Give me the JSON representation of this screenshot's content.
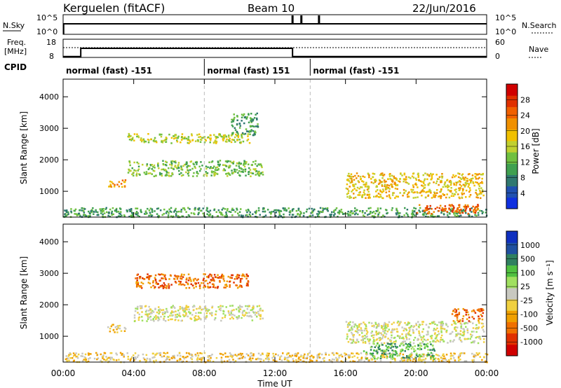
{
  "header": {
    "station": "Kerguelen (fitACF)",
    "beam": "Beam 10",
    "date": "22/Jun/2016"
  },
  "panels": {
    "nsky": {
      "label": "N.Sky",
      "right_label": "N.Search",
      "ticks": [
        "10^5",
        "10^0"
      ]
    },
    "freq": {
      "label_line1": "Freq.",
      "label_line2": "[MHz]",
      "ticks": [
        "18",
        "8"
      ],
      "right_ticks": [
        "60",
        "0"
      ],
      "right_label": "Nave"
    },
    "cpid": {
      "label": "CPID"
    }
  },
  "colors": {
    "frame": "#000000",
    "power_scale": [
      "#1030e0",
      "#2050b0",
      "#307870",
      "#40a050",
      "#70c040",
      "#c0d030",
      "#f0c000",
      "#f09000",
      "#f06000",
      "#e03000",
      "#d00000"
    ],
    "velocity_scale": [
      "#1030c0",
      "#2050a0",
      "#308060",
      "#50c040",
      "#a0e060",
      "#c8c8c0",
      "#f0d040",
      "#f0a000",
      "#f07000",
      "#e03000",
      "#d00000"
    ]
  },
  "cpid_segments": [
    {
      "label": "normal (fast) -151",
      "start_hour": 0
    },
    {
      "label": "normal (fast) 151",
      "start_hour": 8
    },
    {
      "label": "normal (fast) -151",
      "start_hour": 14
    }
  ],
  "colorbars": {
    "power": {
      "title": "Power [dB]",
      "ticks": [
        "28",
        "24",
        "20",
        "16",
        "12",
        "8",
        "4"
      ]
    },
    "velocity": {
      "title": "Velocity [m s⁻¹]",
      "ticks": [
        "1000",
        "500",
        "100",
        "25",
        "-25",
        "-100",
        "-500",
        "-1000"
      ]
    }
  },
  "chart_data": {
    "type": "heatmap",
    "xlabel": "Time UT",
    "ylabel": "Slant Range [km]",
    "x_ticks": [
      "00:00",
      "04:00",
      "08:00",
      "12:00",
      "16:00",
      "20:00",
      "00:00"
    ],
    "y_ticks": [
      "4000",
      "3000",
      "2000",
      "1000"
    ],
    "xlim_hours": [
      0,
      24
    ],
    "ylim_km": [
      180,
      4560
    ],
    "nsky_spikes_hours": [
      13.0,
      13.5,
      14.5
    ],
    "freq_steps": [
      {
        "start_hour": 0,
        "end_hour": 1,
        "mhz": 8.5
      },
      {
        "start_hour": 1,
        "end_hour": 13,
        "mhz": 13
      },
      {
        "start_hour": 13,
        "end_hour": 24,
        "mhz": 8.5
      }
    ],
    "power_regions": [
      {
        "t0": 3.6,
        "t1": 10.6,
        "r0": 2550,
        "r1": 2850,
        "level": 5
      },
      {
        "t0": 3.6,
        "t1": 11.3,
        "r0": 1500,
        "r1": 2000,
        "level": 4
      },
      {
        "t0": 2.5,
        "t1": 3.5,
        "r0": 1150,
        "r1": 1400,
        "level": 7
      },
      {
        "t0": 0,
        "t1": 24,
        "r0": 200,
        "r1": 500,
        "level": 3
      },
      {
        "t0": 16,
        "t1": 23.8,
        "r0": 800,
        "r1": 1600,
        "level": 6
      },
      {
        "t0": 20,
        "t1": 23.5,
        "r0": 300,
        "r1": 600,
        "level": 8
      },
      {
        "t0": 9.5,
        "t1": 11,
        "r0": 2800,
        "r1": 3500,
        "level": 3
      }
    ],
    "velocity_regions": [
      {
        "t0": 4.0,
        "t1": 10.5,
        "r0": 2550,
        "r1": 3000,
        "level": 8
      },
      {
        "t0": 4.0,
        "t1": 11.3,
        "r0": 1500,
        "r1": 2000,
        "level": 5
      },
      {
        "t0": 2.5,
        "t1": 3.5,
        "r0": 1150,
        "r1": 1400,
        "level": 6
      },
      {
        "t0": 0,
        "t1": 24,
        "r0": 200,
        "r1": 500,
        "level": 6
      },
      {
        "t0": 16,
        "t1": 23.8,
        "r0": 800,
        "r1": 1500,
        "level": 5
      },
      {
        "t0": 17,
        "t1": 21,
        "r0": 300,
        "r1": 800,
        "level": 3
      },
      {
        "t0": 22,
        "t1": 23.8,
        "r0": 1500,
        "r1": 1900,
        "level": 8
      }
    ]
  }
}
